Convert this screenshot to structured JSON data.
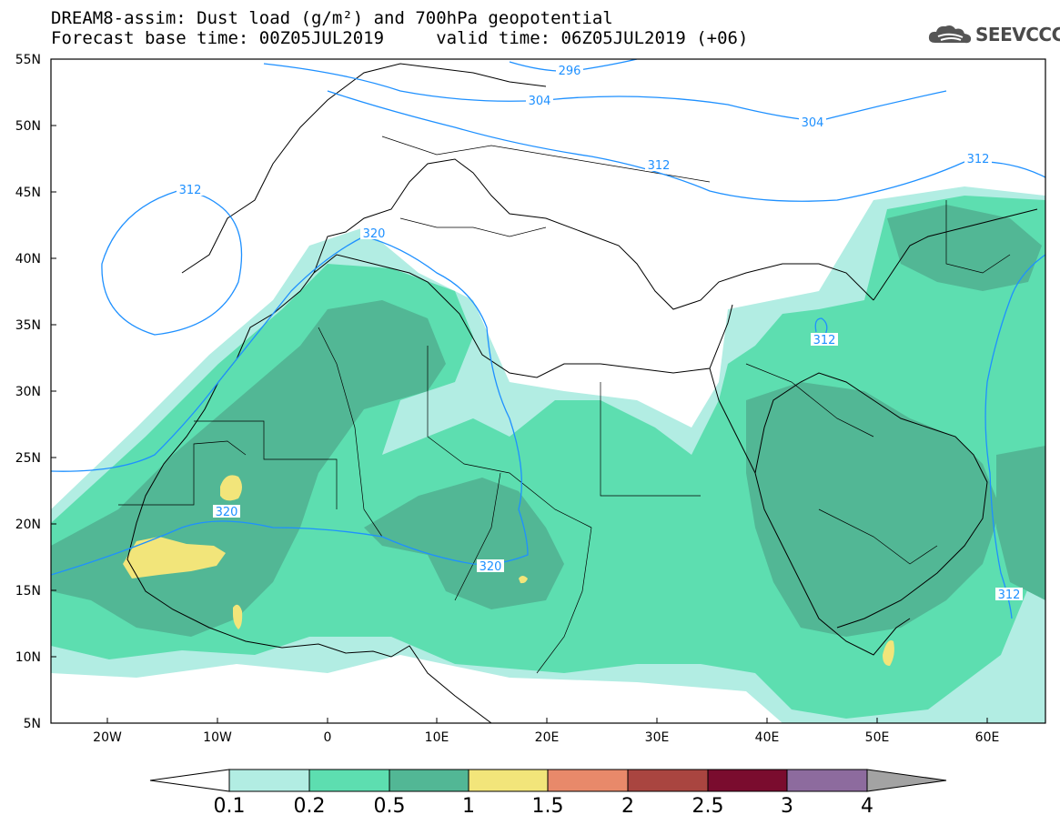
{
  "title": {
    "line1": "DREAM8-assim: Dust load (g/m²) and 700hPa geopotential",
    "line2": "Forecast base time: 00Z05JUL2019     valid time: 06Z05JUL2019 (+06)"
  },
  "logo": {
    "text": "SEEVCCC",
    "icon": "cloud-icon"
  },
  "map": {
    "lat_labels": [
      "55N",
      "50N",
      "45N",
      "40N",
      "35N",
      "30N",
      "25N",
      "20N",
      "15N",
      "10N",
      "5N"
    ],
    "lon_labels": [
      "20W",
      "10W",
      "0",
      "10E",
      "20E",
      "30E",
      "40E",
      "50E",
      "60E"
    ],
    "contour_labels": [
      "296",
      "304",
      "304",
      "312",
      "312",
      "312",
      "320",
      "320",
      "320",
      "312",
      "312"
    ],
    "dust_colors": {
      "c01": "#b2ede3",
      "c02": "#5ddeb0",
      "c05": "#52b795",
      "c1": "#f2e57a"
    },
    "contour_color": "#1e90ff"
  },
  "colorbar": {
    "labels": [
      "0.1",
      "0.2",
      "0.5",
      "1",
      "1.5",
      "2",
      "2.5",
      "3",
      "4"
    ],
    "colors": [
      "#ffffff",
      "#b2ede3",
      "#5ddeb0",
      "#52b795",
      "#f2e57a",
      "#e8896a",
      "#a94540",
      "#7a0c2e",
      "#8d6b9e",
      "#a3a3a3"
    ]
  }
}
